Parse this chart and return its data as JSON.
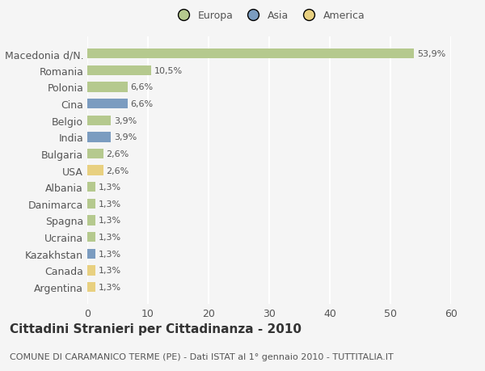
{
  "categories": [
    "Macedonia d/N.",
    "Romania",
    "Polonia",
    "Cina",
    "Belgio",
    "India",
    "Bulgaria",
    "USA",
    "Albania",
    "Danimarca",
    "Spagna",
    "Ucraina",
    "Kazakhstan",
    "Canada",
    "Argentina"
  ],
  "values": [
    53.9,
    10.5,
    6.6,
    6.6,
    3.9,
    3.9,
    2.6,
    2.6,
    1.3,
    1.3,
    1.3,
    1.3,
    1.3,
    1.3,
    1.3
  ],
  "labels": [
    "53,9%",
    "10,5%",
    "6,6%",
    "6,6%",
    "3,9%",
    "3,9%",
    "2,6%",
    "2,6%",
    "1,3%",
    "1,3%",
    "1,3%",
    "1,3%",
    "1,3%",
    "1,3%",
    "1,3%"
  ],
  "colors": [
    "#b5c98e",
    "#b5c98e",
    "#b5c98e",
    "#7b9cc0",
    "#b5c98e",
    "#7b9cc0",
    "#b5c98e",
    "#e8d080",
    "#b5c98e",
    "#b5c98e",
    "#b5c98e",
    "#b5c98e",
    "#7b9cc0",
    "#e8d080",
    "#e8d080"
  ],
  "legend_labels": [
    "Europa",
    "Asia",
    "America"
  ],
  "legend_colors": [
    "#b5c98e",
    "#7b9cc0",
    "#e8d080"
  ],
  "title": "Cittadini Stranieri per Cittadinanza - 2010",
  "subtitle": "COMUNE DI CARAMANICO TERME (PE) - Dati ISTAT al 1° gennaio 2010 - TUTTITALIA.IT",
  "xlim": [
    0,
    60
  ],
  "xticks": [
    0,
    10,
    20,
    30,
    40,
    50,
    60
  ],
  "background_color": "#f5f5f5",
  "grid_color": "#ffffff",
  "bar_height": 0.6,
  "title_fontsize": 11,
  "subtitle_fontsize": 8,
  "axis_fontsize": 9,
  "label_fontsize": 8
}
